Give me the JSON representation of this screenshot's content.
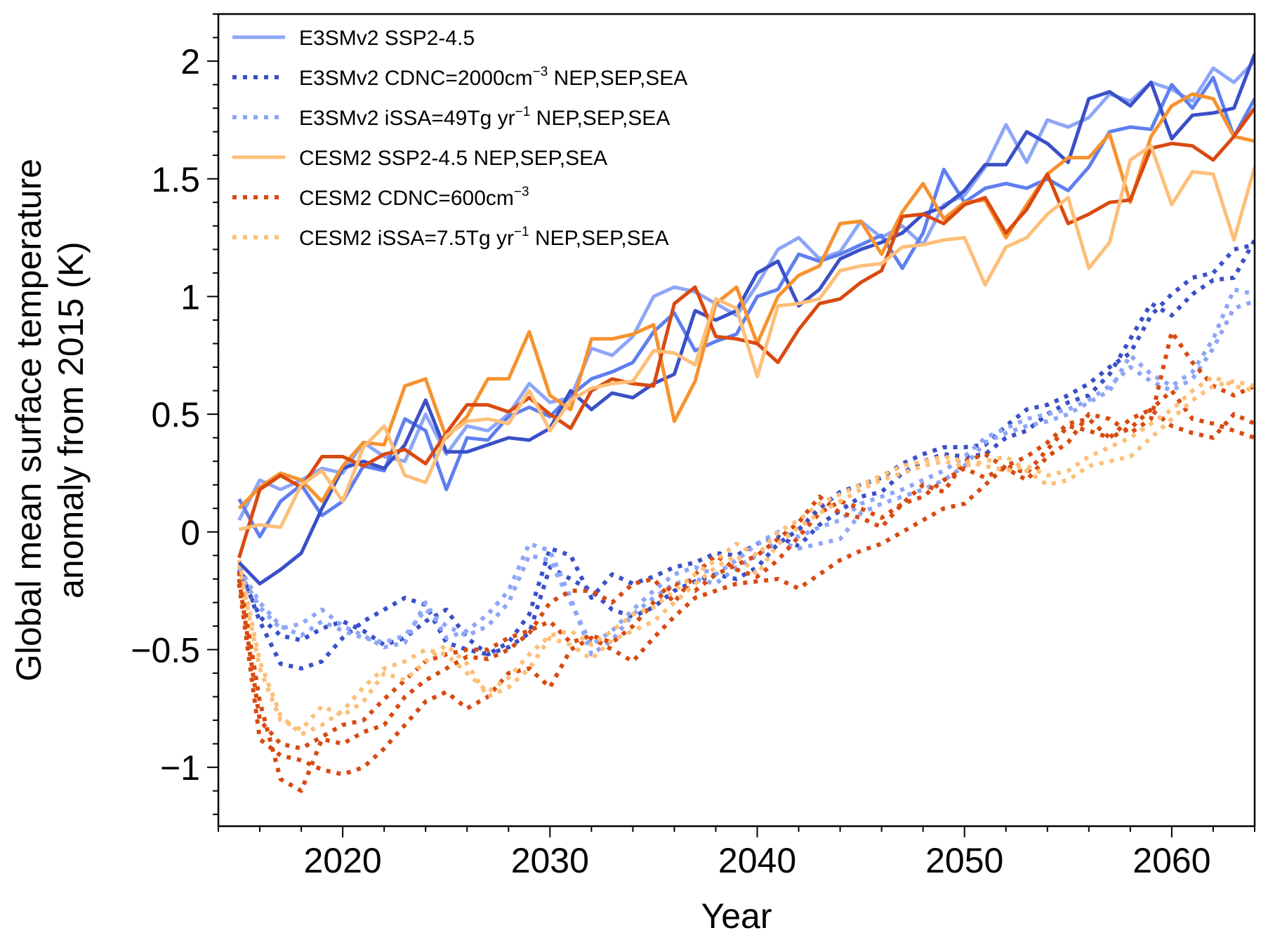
{
  "chart_data": {
    "type": "line",
    "title": "",
    "xlabel": "Year",
    "ylabel": [
      "Global mean surface temperature",
      "anomaly from 2015 (K)"
    ],
    "xlim": [
      2014,
      2064
    ],
    "ylim": [
      -1.25,
      2.2
    ],
    "x_major_ticks": [
      2020,
      2030,
      2040,
      2050,
      2060
    ],
    "x_tick_labels": [
      "2020",
      "2030",
      "2040",
      "2050",
      "2060"
    ],
    "x_minor_step": 2,
    "y_major_ticks": [
      -1,
      -0.5,
      0,
      0.5,
      1,
      1.5,
      2
    ],
    "y_tick_labels": [
      "−1",
      "−0.5",
      "0",
      "0.5",
      "1",
      "1.5",
      "2"
    ],
    "y_minor_step": 0.1,
    "grid": false,
    "legend_position": "top-left",
    "legend": [
      {
        "label": "E3SMv2 SSP2-4.5",
        "sup": "",
        "suffix": "",
        "color": "#8ea6f7",
        "style": "solid"
      },
      {
        "label": "E3SMv2 CDNC=2000cm",
        "sup": "−3",
        "suffix": " NEP,SEP,SEA",
        "color": "#3a50c8",
        "style": "dotted"
      },
      {
        "label": "E3SMv2 iSSA=49Tg yr",
        "sup": "−1",
        "suffix": " NEP,SEP,SEA",
        "color": "#8ea6f7",
        "style": "dotted"
      },
      {
        "label": "CESM2 SSP2-4.5 NEP,SEP,SEA",
        "sup": "",
        "suffix": "",
        "color": "#fdbf78",
        "style": "solid"
      },
      {
        "label": "CESM2 CDNC=600cm",
        "sup": "−3",
        "suffix": "",
        "color": "#d94a10",
        "style": "dotted"
      },
      {
        "label": "CESM2 iSSA=7.5Tg yr",
        "sup": "−1",
        "suffix": " NEP,SEP,SEA",
        "color": "#fdbf78",
        "style": "dotted"
      }
    ],
    "x_start": 2015,
    "series": [
      {
        "name": "E3SMv2 SSP2-4.5 member 1",
        "color": "#8ea6f7",
        "style": "solid",
        "values": [
          0.05,
          0.22,
          0.18,
          0.22,
          0.27,
          0.25,
          0.38,
          0.32,
          0.3,
          0.5,
          0.33,
          0.45,
          0.43,
          0.5,
          0.63,
          0.55,
          0.57,
          0.78,
          0.75,
          0.83,
          1.0,
          1.04,
          1.02,
          0.97,
          0.92,
          1.05,
          1.2,
          1.25,
          1.16,
          1.19,
          1.32,
          1.25,
          1.3,
          1.22,
          1.39,
          1.43,
          1.55,
          1.73,
          1.57,
          1.75,
          1.72,
          1.76,
          1.86,
          1.83,
          1.91,
          1.88,
          1.83,
          1.97,
          1.91,
          2.0
        ]
      },
      {
        "name": "E3SMv2 SSP2-4.5 member 2",
        "color": "#5f7ff0",
        "style": "solid",
        "values": [
          0.14,
          -0.02,
          0.13,
          0.2,
          0.07,
          0.13,
          0.28,
          0.26,
          0.48,
          0.43,
          0.18,
          0.4,
          0.39,
          0.49,
          0.53,
          0.49,
          0.58,
          0.65,
          0.68,
          0.72,
          0.85,
          0.93,
          0.77,
          0.81,
          0.84,
          1.0,
          1.03,
          1.18,
          1.15,
          1.18,
          1.22,
          1.26,
          1.12,
          1.27,
          1.54,
          1.4,
          1.46,
          1.48,
          1.46,
          1.5,
          1.45,
          1.55,
          1.7,
          1.72,
          1.71,
          1.9,
          1.8,
          1.93,
          1.68,
          1.84
        ]
      },
      {
        "name": "E3SMv2 SSP2-4.5 member 3",
        "color": "#3a50c8",
        "style": "solid",
        "values": [
          -0.13,
          -0.22,
          -0.16,
          -0.09,
          0.1,
          0.27,
          0.3,
          0.27,
          0.37,
          0.56,
          0.34,
          0.34,
          0.37,
          0.4,
          0.39,
          0.44,
          0.6,
          0.52,
          0.59,
          0.57,
          0.63,
          0.67,
          0.94,
          0.9,
          0.94,
          1.1,
          1.15,
          0.96,
          1.03,
          1.16,
          1.2,
          1.23,
          1.27,
          1.35,
          1.38,
          1.45,
          1.56,
          1.56,
          1.7,
          1.65,
          1.57,
          1.84,
          1.87,
          1.81,
          1.91,
          1.67,
          1.77,
          1.78,
          1.8,
          2.03
        ]
      },
      {
        "name": "CESM2 SSP2-4.5 member 1",
        "color": "#f7922e",
        "style": "solid",
        "values": [
          0.1,
          0.19,
          0.25,
          0.22,
          0.13,
          0.28,
          0.38,
          0.37,
          0.62,
          0.65,
          0.4,
          0.49,
          0.65,
          0.65,
          0.85,
          0.58,
          0.52,
          0.82,
          0.82,
          0.84,
          0.88,
          0.47,
          0.64,
          0.97,
          1.04,
          0.8,
          1.0,
          1.09,
          1.13,
          1.31,
          1.32,
          1.18,
          1.36,
          1.48,
          1.33,
          1.4,
          1.41,
          1.25,
          1.39,
          1.52,
          1.59,
          1.59,
          1.69,
          1.4,
          1.68,
          1.81,
          1.86,
          1.84,
          1.68,
          1.66
        ]
      },
      {
        "name": "CESM2 SSP2-4.5 member 2",
        "color": "#d94a10",
        "style": "solid",
        "values": [
          -0.11,
          0.18,
          0.24,
          0.19,
          0.32,
          0.32,
          0.28,
          0.33,
          0.35,
          0.29,
          0.42,
          0.54,
          0.54,
          0.51,
          0.57,
          0.5,
          0.44,
          0.6,
          0.65,
          0.63,
          0.62,
          0.97,
          1.04,
          0.83,
          0.82,
          0.8,
          0.72,
          0.86,
          0.97,
          0.99,
          1.06,
          1.11,
          1.34,
          1.35,
          1.31,
          1.39,
          1.42,
          1.27,
          1.37,
          1.52,
          1.31,
          1.35,
          1.4,
          1.41,
          1.63,
          1.65,
          1.64,
          1.58,
          1.68,
          1.8
        ]
      },
      {
        "name": "CESM2 SSP2-4.5 member 3",
        "color": "#fdbf78",
        "style": "solid",
        "values": [
          0.01,
          0.03,
          0.02,
          0.2,
          0.26,
          0.13,
          0.36,
          0.45,
          0.24,
          0.21,
          0.41,
          0.47,
          0.48,
          0.46,
          0.6,
          0.43,
          0.56,
          0.61,
          0.63,
          0.64,
          0.77,
          0.76,
          0.71,
          0.99,
          0.95,
          0.66,
          0.96,
          0.97,
          0.99,
          1.11,
          1.13,
          1.14,
          1.21,
          1.22,
          1.24,
          1.25,
          1.05,
          1.21,
          1.25,
          1.35,
          1.42,
          1.12,
          1.23,
          1.58,
          1.64,
          1.39,
          1.53,
          1.52,
          1.24,
          1.55
        ]
      },
      {
        "name": "E3SMv2 CDNC=2000cm-3 member 1",
        "color": "#3a50c8",
        "style": "dotted",
        "values": [
          -0.14,
          -0.38,
          -0.56,
          -0.58,
          -0.55,
          -0.45,
          -0.38,
          -0.33,
          -0.28,
          -0.31,
          -0.47,
          -0.5,
          -0.52,
          -0.47,
          -0.35,
          -0.07,
          -0.1,
          -0.28,
          -0.18,
          -0.22,
          -0.19,
          -0.15,
          -0.13,
          -0.09,
          -0.1,
          -0.05,
          -0.02,
          -0.06,
          0.03,
          0.09,
          0.15,
          0.17,
          0.25,
          0.3,
          0.33,
          0.32,
          0.33,
          0.4,
          0.43,
          0.5,
          0.55,
          0.58,
          0.67,
          0.82,
          0.97,
          0.92,
          1.01,
          1.07,
          1.08,
          1.24
        ]
      },
      {
        "name": "E3SMv2 CDNC=2000cm-3 member 2",
        "color": "#3a50c8",
        "style": "dotted",
        "values": [
          -0.16,
          -0.36,
          -0.44,
          -0.46,
          -0.41,
          -0.38,
          -0.42,
          -0.48,
          -0.45,
          -0.38,
          -0.33,
          -0.45,
          -0.52,
          -0.49,
          -0.43,
          -0.15,
          -0.2,
          -0.25,
          -0.33,
          -0.36,
          -0.32,
          -0.25,
          -0.21,
          -0.18,
          -0.2,
          -0.15,
          -0.05,
          0.01,
          0.1,
          0.17,
          0.2,
          0.23,
          0.29,
          0.33,
          0.36,
          0.36,
          0.37,
          0.45,
          0.52,
          0.54,
          0.58,
          0.63,
          0.7,
          0.76,
          0.92,
          1.01,
          1.08,
          1.1,
          1.2,
          1.22
        ]
      },
      {
        "name": "E3SMv2 iSSA=49Tg yr-1 member 1",
        "color": "#8ea6f7",
        "style": "dotted",
        "values": [
          -0.17,
          -0.32,
          -0.41,
          -0.39,
          -0.33,
          -0.4,
          -0.44,
          -0.49,
          -0.47,
          -0.3,
          -0.45,
          -0.42,
          -0.35,
          -0.25,
          -0.05,
          -0.08,
          -0.28,
          -0.52,
          -0.46,
          -0.35,
          -0.28,
          -0.22,
          -0.2,
          -0.22,
          -0.15,
          -0.1,
          -0.04,
          -0.07,
          -0.05,
          -0.03,
          0.08,
          0.12,
          0.15,
          0.18,
          0.22,
          0.28,
          0.38,
          0.42,
          0.45,
          0.47,
          0.5,
          0.55,
          0.6,
          0.75,
          0.67,
          0.62,
          0.68,
          0.82,
          1.03,
          1.01
        ]
      },
      {
        "name": "E3SMv2 iSSA=49Tg yr-1 member 2",
        "color": "#8ea6f7",
        "style": "dotted",
        "values": [
          -0.15,
          -0.3,
          -0.4,
          -0.44,
          -0.38,
          -0.42,
          -0.45,
          -0.47,
          -0.44,
          -0.33,
          -0.4,
          -0.44,
          -0.4,
          -0.3,
          -0.1,
          -0.12,
          -0.3,
          -0.48,
          -0.42,
          -0.33,
          -0.25,
          -0.18,
          -0.15,
          -0.18,
          -0.12,
          -0.05,
          0.0,
          -0.02,
          0.02,
          0.05,
          0.12,
          0.15,
          0.18,
          0.22,
          0.26,
          0.32,
          0.4,
          0.44,
          0.48,
          0.5,
          0.52,
          0.56,
          0.62,
          0.7,
          0.64,
          0.6,
          0.65,
          0.78,
          0.95,
          0.98
        ]
      },
      {
        "name": "CESM2 CDNC=600cm-3 member 1",
        "color": "#d94a10",
        "style": "dotted",
        "values": [
          -0.17,
          -0.72,
          -1.05,
          -1.1,
          -0.88,
          -0.9,
          -0.85,
          -0.82,
          -0.7,
          -0.63,
          -0.58,
          -0.53,
          -0.54,
          -0.5,
          -0.43,
          -0.3,
          -0.25,
          -0.25,
          -0.3,
          -0.22,
          -0.2,
          -0.3,
          -0.18,
          -0.1,
          -0.16,
          -0.19,
          -0.12,
          -0.02,
          0.08,
          0.13,
          0.1,
          0.06,
          0.12,
          0.15,
          0.22,
          0.27,
          0.23,
          0.28,
          0.25,
          0.35,
          0.45,
          0.43,
          0.4,
          0.48,
          0.52,
          0.45,
          0.42,
          0.4,
          0.5,
          0.46
        ]
      },
      {
        "name": "CESM2 CDNC=600cm-3 member 2",
        "color": "#d94a10",
        "style": "dotted",
        "values": [
          -0.2,
          -0.8,
          -0.9,
          -0.92,
          -0.87,
          -0.82,
          -0.8,
          -0.71,
          -0.63,
          -0.55,
          -0.52,
          -0.5,
          -0.5,
          -0.45,
          -0.42,
          -0.38,
          -0.47,
          -0.44,
          -0.47,
          -0.4,
          -0.3,
          -0.22,
          -0.25,
          -0.18,
          -0.14,
          -0.1,
          -0.03,
          0.04,
          0.15,
          0.08,
          0.06,
          0.02,
          0.12,
          0.2,
          0.17,
          0.3,
          0.33,
          0.27,
          0.22,
          0.32,
          0.38,
          0.5,
          0.48,
          0.42,
          0.48,
          0.85,
          0.72,
          0.62,
          0.58,
          0.62
        ]
      },
      {
        "name": "CESM2 CDNC=600cm-3 member 3",
        "color": "#d94a10",
        "style": "dotted",
        "values": [
          -0.22,
          -0.88,
          -0.95,
          -0.97,
          -1.01,
          -1.03,
          -1.0,
          -0.92,
          -0.82,
          -0.72,
          -0.68,
          -0.75,
          -0.7,
          -0.6,
          -0.58,
          -0.66,
          -0.5,
          -0.45,
          -0.5,
          -0.55,
          -0.45,
          -0.36,
          -0.28,
          -0.25,
          -0.22,
          -0.21,
          -0.2,
          -0.24,
          -0.18,
          -0.12,
          -0.08,
          -0.05,
          0.0,
          0.05,
          0.1,
          0.12,
          0.2,
          0.28,
          0.32,
          0.38,
          0.46,
          0.48,
          0.4,
          0.44,
          0.52,
          0.6,
          0.48,
          0.46,
          0.43,
          0.4
        ]
      },
      {
        "name": "CESM2 iSSA=7.5Tg yr-1 member 1",
        "color": "#fdbf78",
        "style": "dotted",
        "values": [
          -0.14,
          -0.58,
          -0.8,
          -0.84,
          -0.74,
          -0.78,
          -0.72,
          -0.6,
          -0.63,
          -0.55,
          -0.48,
          -0.56,
          -0.7,
          -0.66,
          -0.58,
          -0.45,
          -0.48,
          -0.54,
          -0.46,
          -0.42,
          -0.38,
          -0.3,
          -0.22,
          -0.15,
          -0.1,
          -0.18,
          -0.05,
          0.02,
          0.08,
          0.13,
          0.18,
          0.22,
          0.25,
          0.28,
          0.3,
          0.28,
          0.3,
          0.32,
          0.26,
          0.2,
          0.22,
          0.28,
          0.3,
          0.32,
          0.4,
          0.48,
          0.56,
          0.62,
          0.64,
          0.62
        ]
      },
      {
        "name": "CESM2 iSSA=7.5Tg yr-1 member 2",
        "color": "#fdbf78",
        "style": "dotted",
        "values": [
          -0.12,
          -0.55,
          -0.78,
          -0.86,
          -0.82,
          -0.76,
          -0.66,
          -0.58,
          -0.55,
          -0.5,
          -0.52,
          -0.6,
          -0.68,
          -0.62,
          -0.52,
          -0.44,
          -0.42,
          -0.48,
          -0.42,
          -0.35,
          -0.32,
          -0.25,
          -0.18,
          -0.12,
          -0.05,
          -0.1,
          0.0,
          0.05,
          0.12,
          0.16,
          0.2,
          0.24,
          0.28,
          0.3,
          0.32,
          0.3,
          0.28,
          0.26,
          0.28,
          0.24,
          0.26,
          0.32,
          0.36,
          0.4,
          0.46,
          0.52,
          0.6,
          0.66,
          0.62,
          0.6
        ]
      }
    ]
  }
}
